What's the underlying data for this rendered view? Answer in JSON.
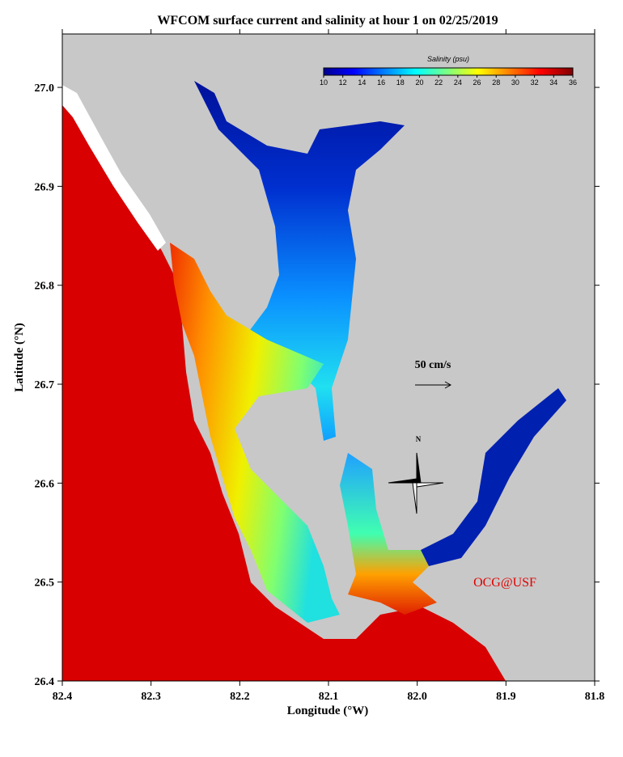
{
  "title": "WFCOM surface current and salinity at hour 1 on 02/25/2019",
  "x_label": "Longitude (°W)",
  "y_label": "Latitude (°N)",
  "xlim": [
    82.4,
    81.8
  ],
  "xticks": [
    82.4,
    82.3,
    82.2,
    82.1,
    {
      "value": 82.0,
      "label": "82.0"
    },
    81.9,
    81.8
  ],
  "ylim": [
    26.4,
    27.054
  ],
  "yticks": [
    26.4,
    26.5,
    26.6,
    26.7,
    26.8,
    26.9,
    {
      "value": 27.0,
      "label": "27.0"
    }
  ],
  "colorbar": {
    "title": "Salinity (psu)",
    "lim": [
      10,
      36
    ],
    "ticks": [
      10,
      12,
      14,
      16,
      18,
      20,
      22,
      24,
      26,
      28,
      30,
      32,
      34,
      36
    ]
  },
  "scale_label": "50 cm/s",
  "compass_label": "N",
  "credit": "OCG@USF"
}
